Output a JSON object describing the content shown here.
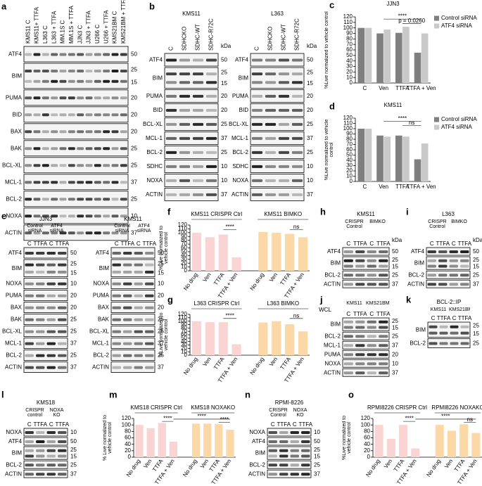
{
  "blot_panels": [
    {
      "letter": "a",
      "blots": [
        {
          "lanes": [
            "KMS11 C",
            "KMS11+ TTFA",
            "L363 C",
            "L363 + TTFA",
            "MM.1S C",
            "MM.1S + TTFA",
            "JJN3 C",
            "JJN3 + TTFA",
            "U266 C",
            "U266 + TTFA",
            "KMS21BM C",
            "KMS21BM + TTFA"
          ],
          "rows": [
            {
              "label": "ATF4",
              "kda": [
                50
              ]
            },
            {
              "label": "BIM",
              "kda": [
                25,
                15
              ]
            },
            {
              "label": "PUMA",
              "kda": [
                20
              ]
            },
            {
              "label": "BID",
              "kda": [
                20
              ]
            },
            {
              "label": "BAX",
              "kda": [
                20
              ]
            },
            {
              "label": "BAK",
              "kda": [
                25
              ]
            },
            {
              "label": "BCL-XL",
              "kda": [
                25
              ]
            },
            {
              "label": "MCL-1",
              "kda": [
                37
              ]
            },
            {
              "label": "BCL-2",
              "kda": [
                25
              ]
            },
            {
              "label": "NOXA",
              "kda": [
                10
              ]
            },
            {
              "label": "ACTIN",
              "kda": [
                37
              ]
            }
          ]
        }
      ]
    },
    {
      "letter": "b",
      "blots": [
        {
          "title": "KMS11",
          "kda_label": "kDa",
          "lanes": [
            "C",
            "SDHCKO",
            "SDHC-WT",
            "SDHC-R72C"
          ],
          "rows": [
            {
              "label": "ATF4",
              "kda": [
                50
              ]
            },
            {
              "label": "BIM",
              "kda": [
                25,
                15
              ]
            },
            {
              "label": "PUMA",
              "kda": [
                20
              ]
            },
            {
              "label": "BID",
              "kda": [
                20
              ]
            },
            {
              "label": "BCL-XL",
              "kda": [
                25
              ]
            },
            {
              "label": "MCL-1",
              "kda": [
                37
              ]
            },
            {
              "label": "BCL-2",
              "kda": [
                25
              ]
            },
            {
              "label": "SDHC",
              "kda": [
                10
              ]
            },
            {
              "label": "NOXA",
              "kda": [
                10
              ]
            },
            {
              "label": "ACTIN",
              "kda": [
                37
              ]
            }
          ]
        },
        {
          "title": "L363",
          "kda_label": "kDa",
          "lanes": [
            "C",
            "SDHCKO",
            "SDHC-WT",
            "SDHC-R72C"
          ],
          "rows": [
            {
              "label": "ATF4",
              "kda": [
                50
              ]
            },
            {
              "label": "BIM",
              "kda": [
                25,
                15
              ]
            },
            {
              "label": "PUMA",
              "kda": [
                20
              ]
            },
            {
              "label": "BID",
              "kda": [
                20
              ]
            },
            {
              "label": "BCL-XL",
              "kda": [
                25
              ]
            },
            {
              "label": "MCL-1",
              "kda": [
                37
              ]
            },
            {
              "label": "BCL-2",
              "kda": [
                25
              ]
            },
            {
              "label": "SDHC",
              "kda": [
                10
              ]
            },
            {
              "label": "NOXA",
              "kda": [
                10
              ]
            },
            {
              "label": "ACTIN",
              "kda": [
                37
              ]
            }
          ]
        }
      ]
    },
    {
      "letter": "e",
      "blots": [
        {
          "title": "JJN3",
          "groups": [
            "Control siRNA",
            "ATF4 siRNA"
          ],
          "lanes": [
            "C",
            "TTFA",
            "C",
            "TTFA"
          ],
          "rows": [
            {
              "label": "ATF4",
              "kda": [
                50
              ]
            },
            {
              "label": "BIM",
              "kda": [
                25,
                15
              ]
            },
            {
              "label": "NOXA",
              "kda": [
                10
              ]
            },
            {
              "label": "PUMA",
              "kda": [
                20
              ]
            },
            {
              "label": "BAX",
              "kda": [
                20
              ]
            },
            {
              "label": "BAK",
              "kda": [
                25
              ]
            },
            {
              "label": "BCL-XL",
              "kda": [
                25
              ]
            },
            {
              "label": "MCL-1",
              "kda": [
                37
              ]
            },
            {
              "label": "BCL-2",
              "kda": [
                25
              ]
            },
            {
              "label": "ACTIN",
              "kda": [
                37
              ]
            }
          ]
        },
        {
          "title": "KMS11",
          "groups": [
            "Control siRNA",
            "ATF4 siRNA"
          ],
          "lanes": [
            "C",
            "TTFA",
            "C",
            "TTFA"
          ],
          "rows": [
            {
              "label": "ATF4",
              "kda": [
                50
              ]
            },
            {
              "label": "BIM",
              "kda": [
                25,
                15
              ]
            },
            {
              "label": "NOXA",
              "kda": [
                10
              ]
            },
            {
              "label": "PUMA",
              "kda": [
                20
              ]
            },
            {
              "label": "BAX",
              "kda": [
                20
              ]
            },
            {
              "label": "BAK",
              "kda": [
                25
              ]
            },
            {
              "label": "BCL-XL",
              "kda": [
                25
              ]
            },
            {
              "label": "MCL-1",
              "kda": [
                37
              ]
            },
            {
              "label": "BCL-2",
              "kda": [
                25
              ]
            },
            {
              "label": "ACTIN",
              "kda": [
                37
              ]
            }
          ]
        }
      ]
    },
    {
      "letter": "h",
      "blots": [
        {
          "title": "KMS11",
          "kda_label": "kDa",
          "groups": [
            "CRISPR Control",
            "BIMKO"
          ],
          "lanes": [
            "C",
            "TTFA",
            "C",
            "TTFA"
          ],
          "rows": [
            {
              "label": "ATF4",
              "kda": [
                50
              ]
            },
            {
              "label": "BIM",
              "kda": [
                25,
                15
              ]
            },
            {
              "label": "BCL-2",
              "kda": [
                25
              ]
            },
            {
              "label": "ACTIN",
              "kda": [
                37
              ]
            }
          ]
        }
      ]
    },
    {
      "letter": "i",
      "blots": [
        {
          "title": "L363",
          "kda_label": "kDa",
          "groups": [
            "CRISPR Control",
            "BIMKO"
          ],
          "lanes": [
            "C",
            "TTFA",
            "C",
            "TTFA"
          ],
          "rows": [
            {
              "label": "ATF4",
              "kda": [
                50
              ]
            },
            {
              "label": "BIM",
              "kda": [
                25,
                15
              ]
            },
            {
              "label": "BCL-2",
              "kda": [
                25
              ]
            },
            {
              "label": "ACTIN",
              "kda": [
                37
              ]
            }
          ]
        }
      ]
    },
    {
      "letter": "j",
      "blots": [
        {
          "label": "WCL",
          "groups": [
            "KMS11",
            "KMS21BM"
          ],
          "lanes": [
            "C",
            "TTFA",
            "C",
            "TTFA"
          ],
          "rows": [
            {
              "label": "BIM",
              "kda": [
                25,
                15
              ]
            },
            {
              "label": "BCL-2",
              "kda": [
                25
              ]
            },
            {
              "label": "MCL-1",
              "kda": [
                37
              ]
            },
            {
              "label": "PUMA",
              "kda": [
                20
              ]
            },
            {
              "label": "NOXA",
              "kda": [
                10
              ]
            },
            {
              "label": "ACTIN",
              "kda": [
                37
              ]
            }
          ]
        }
      ]
    },
    {
      "letter": "k",
      "blots": [
        {
          "title": "BCL-2::IP",
          "groups": [
            "KMS11",
            "KMS21BM"
          ],
          "lanes": [
            "C",
            "TTFA",
            "C",
            "TTFA"
          ],
          "rows": [
            {
              "label": "BIM",
              "kda": [
                25,
                15
              ]
            },
            {
              "label": "BCL-2",
              "kda": [
                25
              ]
            }
          ]
        }
      ]
    },
    {
      "letter": "l",
      "blots": [
        {
          "title": "KMS18",
          "groups": [
            "CRISPR control",
            "NOXA KO"
          ],
          "lanes": [
            "C",
            "TTFA",
            "C",
            "TTFA"
          ],
          "rows": [
            {
              "label": "NOXA",
              "kda": [
                10
              ]
            },
            {
              "label": "ATF4",
              "kda": [
                50
              ]
            },
            {
              "label": "BIM",
              "kda": [
                25,
                15
              ]
            },
            {
              "label": "BCL-2",
              "kda": [
                25
              ]
            },
            {
              "label": "ACTIN",
              "kda": [
                37
              ]
            }
          ]
        }
      ]
    },
    {
      "letter": "n",
      "blots": [
        {
          "title": "RPMI-8226",
          "groups": [
            "CRISPR Control",
            "NOXA KO"
          ],
          "lanes": [
            "C",
            "TTFA",
            "C",
            "TTFA"
          ],
          "rows": [
            {
              "label": "NOXA",
              "kda": [
                10
              ]
            },
            {
              "label": "ATF4",
              "kda": [
                50
              ]
            },
            {
              "label": "BIM",
              "kda": [
                25,
                15
              ]
            },
            {
              "label": "BCL-2",
              "kda": [
                25
              ]
            },
            {
              "label": "ACTIN",
              "kda": [
                37
              ]
            }
          ]
        }
      ]
    }
  ],
  "chart_data": [
    {
      "letter": "c",
      "type": "bar",
      "title": "JJN3",
      "ylabel": "%Live normalized to vehicle control",
      "categories": [
        "C",
        "Ven",
        "TTFA",
        "TTFA + Ven"
      ],
      "series": [
        {
          "name": "Control siRNA",
          "color": "#7f7f7f",
          "values": [
            100,
            90,
            91,
            55
          ]
        },
        {
          "name": "ATF4 siRNA",
          "color": "#c9c9c9",
          "values": [
            100,
            97,
            102,
            90
          ]
        }
      ],
      "ylim": [
        0,
        120
      ],
      "yticks": [
        0,
        10,
        20,
        30,
        40,
        50,
        60,
        70,
        80,
        90,
        100,
        110,
        120
      ],
      "legend": "right",
      "annotations": [
        "****",
        "p = 0.0260"
      ]
    },
    {
      "letter": "d",
      "type": "bar",
      "title": "KMS11",
      "ylabel": "%Live normalized to vehicle control",
      "categories": [
        "C",
        "Ven",
        "TTFA",
        "TTFA + Ven"
      ],
      "series": [
        {
          "name": "Control siRNA",
          "color": "#7f7f7f",
          "values": [
            100,
            87,
            87,
            42
          ]
        },
        {
          "name": "ATF4 siRNA",
          "color": "#c9c9c9",
          "values": [
            100,
            85,
            85,
            72
          ]
        }
      ],
      "ylim": [
        0,
        120
      ],
      "yticks": [
        0,
        10,
        20,
        30,
        40,
        50,
        60,
        70,
        80,
        90,
        100,
        110,
        120
      ],
      "legend": "right",
      "annotations": [
        "****",
        "ns"
      ]
    },
    {
      "letter": "f",
      "type": "bar",
      "ylabel": "%Live normalized to vehicle control",
      "categories": [
        "No drug",
        "Ven",
        "TTFA",
        "TTFA + Ven"
      ],
      "series": [
        {
          "name": "KMS11 CRISPR Ctrl",
          "color": "#f9d4d2",
          "values": [
            100,
            88,
            95,
            35
          ]
        },
        {
          "name": "KMS11 BIMKO",
          "color": "#fcd8a6",
          "values": [
            102,
            100,
            97,
            88
          ]
        }
      ],
      "ylim": [
        0,
        120
      ],
      "yticks": [
        0,
        10,
        20,
        30,
        40,
        50,
        60,
        70,
        80,
        90,
        100,
        110,
        120
      ],
      "annotations": [
        "****",
        "ns"
      ]
    },
    {
      "letter": "g",
      "type": "bar",
      "ylabel": "%Live normalized to vehicle control",
      "categories": [
        "No drug",
        "Ven",
        "TTFA",
        "TTFA + Ven"
      ],
      "series": [
        {
          "name": "L363 CRISPR Ctrl",
          "color": "#f9d4d2",
          "values": [
            100,
            97,
            97,
            32
          ]
        },
        {
          "name": "L363 BIMKO",
          "color": "#fcd8a6",
          "values": [
            96,
            100,
            91,
            70
          ]
        }
      ],
      "ylim": [
        0,
        120
      ],
      "yticks": [
        0,
        10,
        20,
        30,
        40,
        50,
        60,
        70,
        80,
        90,
        100,
        110,
        120
      ],
      "annotations": [
        "****",
        "ns"
      ]
    },
    {
      "letter": "m",
      "type": "bar",
      "ylabel": "% Live normalized to vehicle control",
      "categories": [
        "No drug",
        "Ven",
        "TTFA",
        "TTFA + Ven"
      ],
      "series": [
        {
          "name": "KMS18 CRISPR Ctrl",
          "color": "#f9d4d2",
          "values": [
            100,
            90,
            106,
            48
          ]
        },
        {
          "name": "KMS18 NOXAKO",
          "color": "#fcd8a6",
          "values": [
            104,
            104,
            103,
            85
          ]
        }
      ],
      "ylim": [
        0,
        120
      ],
      "yticks": [
        0,
        20,
        40,
        60,
        80,
        100,
        120
      ],
      "annotations": [
        "****",
        "****",
        "****"
      ]
    },
    {
      "letter": "o",
      "type": "bar",
      "ylabel": "%Live normalized to vehicle control",
      "categories": [
        "No drug",
        "Ven",
        "TTFA",
        "TTFA + Ven"
      ],
      "series": [
        {
          "name": "RPMI8226 CRISPR Ctrl",
          "color": "#f9d4d2",
          "values": [
            100,
            57,
            100,
            27
          ]
        },
        {
          "name": "RPMI8226 NOXAKO",
          "color": "#fcd8a6",
          "values": [
            100,
            82,
            102,
            75
          ]
        }
      ],
      "ylim": [
        0,
        120
      ],
      "yticks": [
        0,
        20,
        40,
        60,
        80,
        100,
        120
      ],
      "annotations": [
        "****",
        "****",
        "ns"
      ]
    }
  ]
}
